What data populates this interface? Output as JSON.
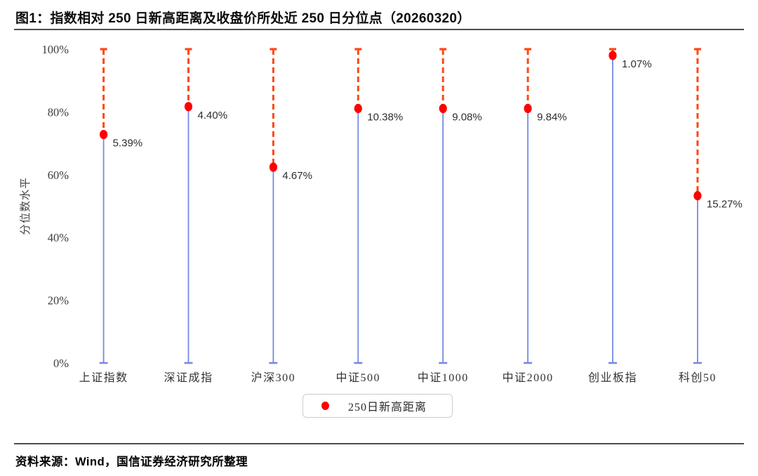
{
  "title": "图1：指数相对 250 日新高距离及收盘价所处近 250 日分位点（20260320）",
  "footer": "资料来源：Wind，国信证券经济研究所整理",
  "legend": {
    "label": "250日新高距离",
    "marker": "red-dot",
    "marker_color": "#ff0000"
  },
  "chart_data": {
    "type": "scatter",
    "description": "Stem chart: blue solid stem from 0% up to red dot (closing-price percentile of last 250 days); red dashed segment continues up to 100%. Text label beside each dot is the distance to the 250-day high.",
    "categories": [
      "上证指数",
      "深证成指",
      "沪深300",
      "中证500",
      "中证1000",
      "中证2000",
      "创业板指",
      "科创50"
    ],
    "series": [
      {
        "name": "250日新高距离",
        "distance_labels": [
          "5.39%",
          "4.40%",
          "4.67%",
          "10.38%",
          "9.08%",
          "9.84%",
          "1.07%",
          "15.27%"
        ],
        "percentile_values": [
          72.8,
          81.7,
          62.4,
          81.1,
          81.1,
          81.1,
          98.0,
          53.3
        ]
      }
    ],
    "ylabel": "分位数水平",
    "yticks": [
      "0%",
      "20%",
      "40%",
      "60%",
      "80%",
      "100%"
    ],
    "ylim": [
      0,
      100
    ],
    "grid": false,
    "legend_position": "bottom-center",
    "colors": {
      "stem_solid": "#7589e8",
      "stem_dashed": "#ff4716",
      "dot": "#ff0000"
    }
  }
}
